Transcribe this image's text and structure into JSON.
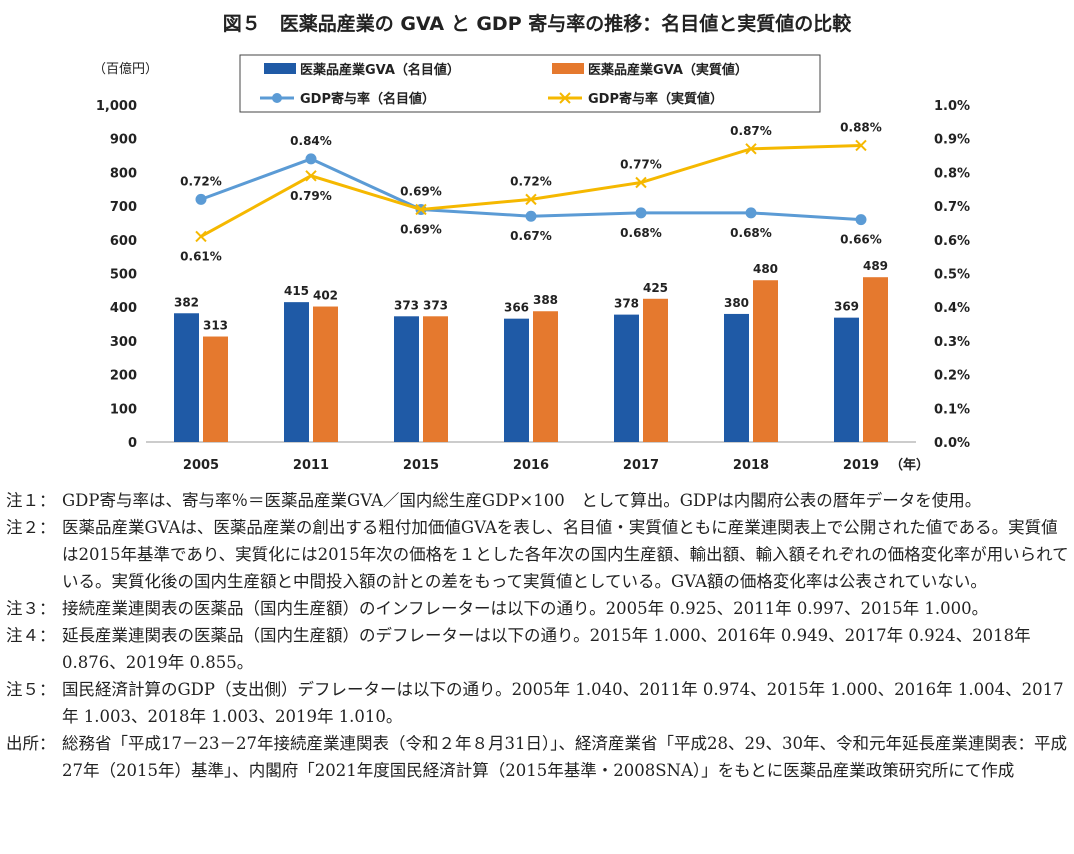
{
  "chart_data": {
    "type": "bar+line",
    "title": "図５　医薬品産業の GVA と GDP 寄与率の推移：名目値と実質値の比較",
    "left_axis_unit": "（百億円）",
    "x_axis_unit": "（年）",
    "categories": [
      "2005",
      "2011",
      "2015",
      "2016",
      "2017",
      "2018",
      "2019"
    ],
    "left_ylim": [
      0,
      1000
    ],
    "left_ticks": [
      "0",
      "100",
      "200",
      "300",
      "400",
      "500",
      "600",
      "700",
      "800",
      "900",
      "1,000"
    ],
    "right_ylim": [
      0,
      1.0
    ],
    "right_ticks": [
      "0.0%",
      "0.1%",
      "0.2%",
      "0.3%",
      "0.4%",
      "0.5%",
      "0.6%",
      "0.7%",
      "0.8%",
      "0.9%",
      "1.0%"
    ],
    "grid": false,
    "legend_position": "top",
    "series": [
      {
        "name": "医薬品産業GVA（名目値）",
        "kind": "bar",
        "axis": "left",
        "color": "#1f5aa6",
        "values": [
          382,
          415,
          373,
          366,
          378,
          380,
          369
        ]
      },
      {
        "name": "医薬品産業GVA（実質値）",
        "kind": "bar",
        "axis": "left",
        "color": "#e5792e",
        "values": [
          313,
          402,
          373,
          388,
          425,
          480,
          489
        ]
      },
      {
        "name": "GDP寄与率（名目値）",
        "kind": "line",
        "marker": "circle",
        "axis": "right",
        "color": "#5b9bd5",
        "values": [
          0.72,
          0.84,
          0.69,
          0.67,
          0.68,
          0.68,
          0.66
        ],
        "labels": [
          "0.72%",
          "0.84%",
          "0.69%",
          "0.67%",
          "0.68%",
          "0.68%",
          "0.66%"
        ]
      },
      {
        "name": "GDP寄与率（実質値）",
        "kind": "line",
        "marker": "x",
        "axis": "right",
        "color": "#f5b800",
        "values": [
          0.61,
          0.79,
          0.69,
          0.72,
          0.77,
          0.87,
          0.88
        ],
        "labels": [
          "0.61%",
          "0.79%",
          "0.69%",
          "0.72%",
          "0.77%",
          "0.87%",
          "0.88%"
        ]
      }
    ]
  },
  "notes": [
    {
      "label": "注１：",
      "text": "GDP寄与率は、寄与率％＝医薬品産業GVA／国内総生産GDP×100　として算出。GDPは内閣府公表の暦年データを使用。"
    },
    {
      "label": "注２：",
      "text": "医薬品産業GVAは、医薬品産業の創出する粗付加価値GVAを表し、名目値・実質値ともに産業連関表上で公開された値である。実質値は2015年基準であり、実質化には2015年次の価格を１とした各年次の国内生産額、輸出額、輸入額それぞれの価格変化率が用いられている。実質化後の国内生産額と中間投入額の計との差をもって実質値としている。GVA額の価格変化率は公表されていない。"
    },
    {
      "label": "注３：",
      "text": "接続産業連関表の医薬品（国内生産額）のインフレーターは以下の通り。2005年 0.925、2011年 0.997、2015年 1.000。"
    },
    {
      "label": "注４：",
      "text": "延長産業連関表の医薬品（国内生産額）のデフレーターは以下の通り。2015年 1.000、2016年 0.949、2017年 0.924、2018年 0.876、2019年 0.855。"
    },
    {
      "label": "注５：",
      "text": "国民経済計算のGDP（支出側）デフレーターは以下の通り。2005年 1.040、2011年 0.974、2015年 1.000、2016年 1.004、2017年 1.003、2018年 1.003、2019年 1.010。"
    },
    {
      "label": "出所：",
      "text": "総務省「平成17－23－27年接続産業連関表（令和２年８月31日）」、経済産業省「平成28、29、30年、令和元年延長産業連関表：平成27年（2015年）基準」、内閣府「2021年度国民経済計算（2015年基準・2008SNA）」をもとに医薬品産業政策研究所にて作成"
    }
  ]
}
